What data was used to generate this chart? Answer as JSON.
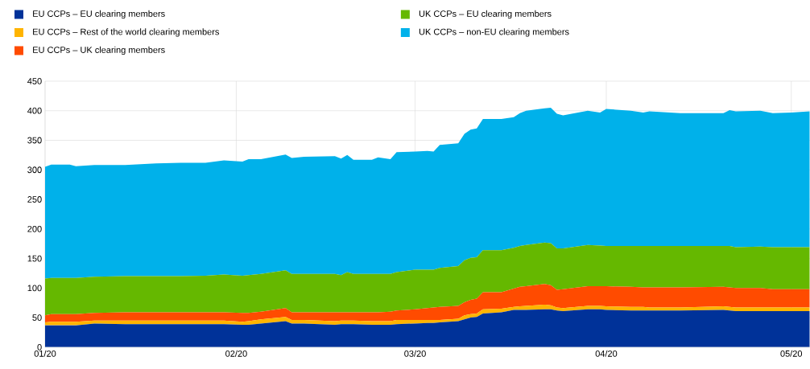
{
  "chart_data": {
    "type": "area",
    "stacked": true,
    "x": [
      "2020-01-01",
      "2020-01-02",
      "2020-01-05",
      "2020-01-06",
      "2020-01-09",
      "2020-01-14",
      "2020-01-19",
      "2020-01-23",
      "2020-01-27",
      "2020-01-30",
      "2020-02-02",
      "2020-02-03",
      "2020-02-05",
      "2020-02-09",
      "2020-02-10",
      "2020-02-12",
      "2020-02-17",
      "2020-02-18",
      "2020-02-19",
      "2020-02-20",
      "2020-02-23",
      "2020-02-24",
      "2020-02-26",
      "2020-02-27",
      "2020-03-01",
      "2020-03-03",
      "2020-03-04",
      "2020-03-05",
      "2020-03-08",
      "2020-03-09",
      "2020-03-10",
      "2020-03-11",
      "2020-03-12",
      "2020-03-15",
      "2020-03-17",
      "2020-03-18",
      "2020-03-19",
      "2020-03-22",
      "2020-03-23",
      "2020-03-24",
      "2020-03-25",
      "2020-03-29",
      "2020-03-31",
      "2020-04-01",
      "2020-04-05",
      "2020-04-07",
      "2020-04-08",
      "2020-04-13",
      "2020-04-20",
      "2020-04-21",
      "2020-04-22",
      "2020-04-26",
      "2020-04-28",
      "2020-05-01",
      "2020-05-04"
    ],
    "series": [
      {
        "name": "EU CCPs – EU clearing members",
        "color": "#003299",
        "values": [
          37,
          37,
          37,
          37,
          40,
          39,
          39,
          39,
          39,
          39,
          38,
          38,
          40,
          44,
          40,
          40,
          38,
          39,
          39,
          39,
          38,
          38,
          38,
          39,
          40,
          41,
          41,
          42,
          44,
          47,
          50,
          51,
          57,
          59,
          63,
          63,
          63,
          64,
          64,
          62,
          61,
          64,
          64,
          63,
          62,
          62,
          62,
          62,
          63,
          62,
          61,
          61,
          61,
          61,
          61
        ]
      },
      {
        "name": "EU CCPs – Rest of the world clearing members",
        "color": "#ffb400",
        "values": [
          5,
          6,
          6,
          6,
          5,
          6,
          6,
          6,
          6,
          6,
          5,
          6,
          7,
          7,
          6,
          6,
          6,
          6,
          6,
          6,
          6,
          6,
          6,
          7,
          6,
          5,
          5,
          4,
          4,
          7,
          6,
          6,
          7,
          6,
          5,
          6,
          7,
          8,
          7,
          5,
          5,
          6,
          6,
          6,
          6,
          6,
          5,
          5,
          6,
          6,
          6,
          6,
          6,
          6,
          6
        ]
      },
      {
        "name": "EU CCPs – UK clearing members",
        "color": "#ff4b00",
        "values": [
          12,
          13,
          13,
          13,
          13,
          14,
          14,
          14,
          14,
          14,
          15,
          14,
          13,
          15,
          13,
          13,
          15,
          14,
          14,
          14,
          15,
          15,
          16,
          16,
          18,
          20,
          21,
          22,
          22,
          22,
          24,
          25,
          29,
          28,
          31,
          33,
          33,
          35,
          34,
          30,
          32,
          33,
          33,
          34,
          34,
          33,
          34,
          34,
          33,
          33,
          33,
          33,
          31,
          31,
          31
        ]
      },
      {
        "name": "UK CCPs – EU clearing members",
        "color": "#65b800",
        "values": [
          62,
          61,
          61,
          61,
          61,
          61,
          61,
          61,
          62,
          64,
          63,
          64,
          64,
          64,
          65,
          65,
          65,
          63,
          68,
          65,
          65,
          65,
          64,
          65,
          67,
          65,
          64,
          66,
          67,
          71,
          71,
          70,
          71,
          71,
          69,
          69,
          70,
          70,
          71,
          70,
          69,
          70,
          69,
          68,
          69,
          70,
          70,
          70,
          69,
          70,
          69,
          70,
          71,
          71,
          71
        ]
      },
      {
        "name": "UK CCPs – non-EU clearing members",
        "color": "#00b1ea",
        "values": [
          189,
          192,
          192,
          189,
          189,
          188,
          191,
          192,
          191,
          193,
          193,
          196,
          194,
          196,
          196,
          198,
          199,
          197,
          198,
          193,
          193,
          197,
          194,
          203,
          200,
          201,
          200,
          208,
          208,
          214,
          217,
          218,
          222,
          222,
          221,
          225,
          227,
          227,
          229,
          228,
          225,
          227,
          225,
          232,
          229,
          226,
          228,
          225,
          225,
          230,
          230,
          230,
          227,
          228,
          230
        ]
      }
    ],
    "xlim": [
      "2020-01-01",
      "2020-05-04"
    ],
    "xticks": [
      {
        "value": "2020-01-01",
        "label": "01/20"
      },
      {
        "value": "2020-02-01",
        "label": "02/20"
      },
      {
        "value": "2020-03-01",
        "label": "03/20"
      },
      {
        "value": "2020-04-01",
        "label": "04/20"
      },
      {
        "value": "2020-05-01",
        "label": "05/20"
      }
    ],
    "ylim": [
      0,
      450
    ],
    "yticks": [
      0,
      50,
      100,
      150,
      200,
      250,
      300,
      350,
      400,
      450
    ],
    "grid": true,
    "legend": "top"
  }
}
